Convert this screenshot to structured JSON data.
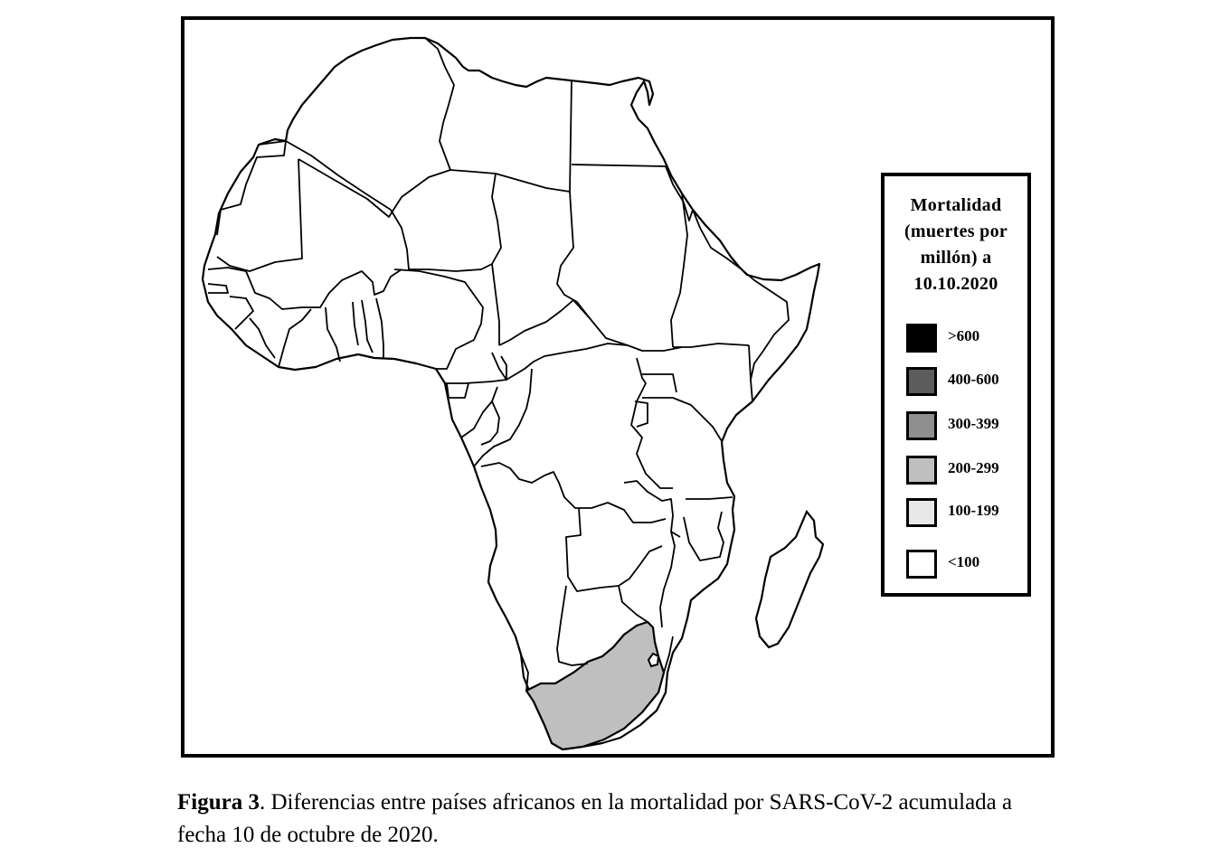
{
  "legend": {
    "title_lines": [
      "Mortalidad",
      "(muertes por",
      "millón) a",
      "10.10.2020"
    ],
    "items": [
      {
        "label": ">600",
        "color": "#000000"
      },
      {
        "label": "400-600",
        "color": "#5c5c5c"
      },
      {
        "label": "300-399",
        "color": "#8f8f8f"
      },
      {
        "label": "200-299",
        "color": "#bfbfbf"
      },
      {
        "label": "100-199",
        "color": "#e8e8e8"
      },
      {
        "label": "<100",
        "color": "#ffffff"
      }
    ]
  },
  "map": {
    "colors": {
      "border": "#000000",
      "default_fill": "#ffffff",
      "south_africa_fill": "#bfbfbf"
    },
    "countries": [
      {
        "name": "South Africa",
        "category": "200-299"
      }
    ]
  },
  "caption": {
    "label": "Figura 3",
    "text": ". Diferencias entre países africanos en la mortalidad por SARS-CoV-2 acumulada a fecha 10 de octubre de 2020."
  }
}
